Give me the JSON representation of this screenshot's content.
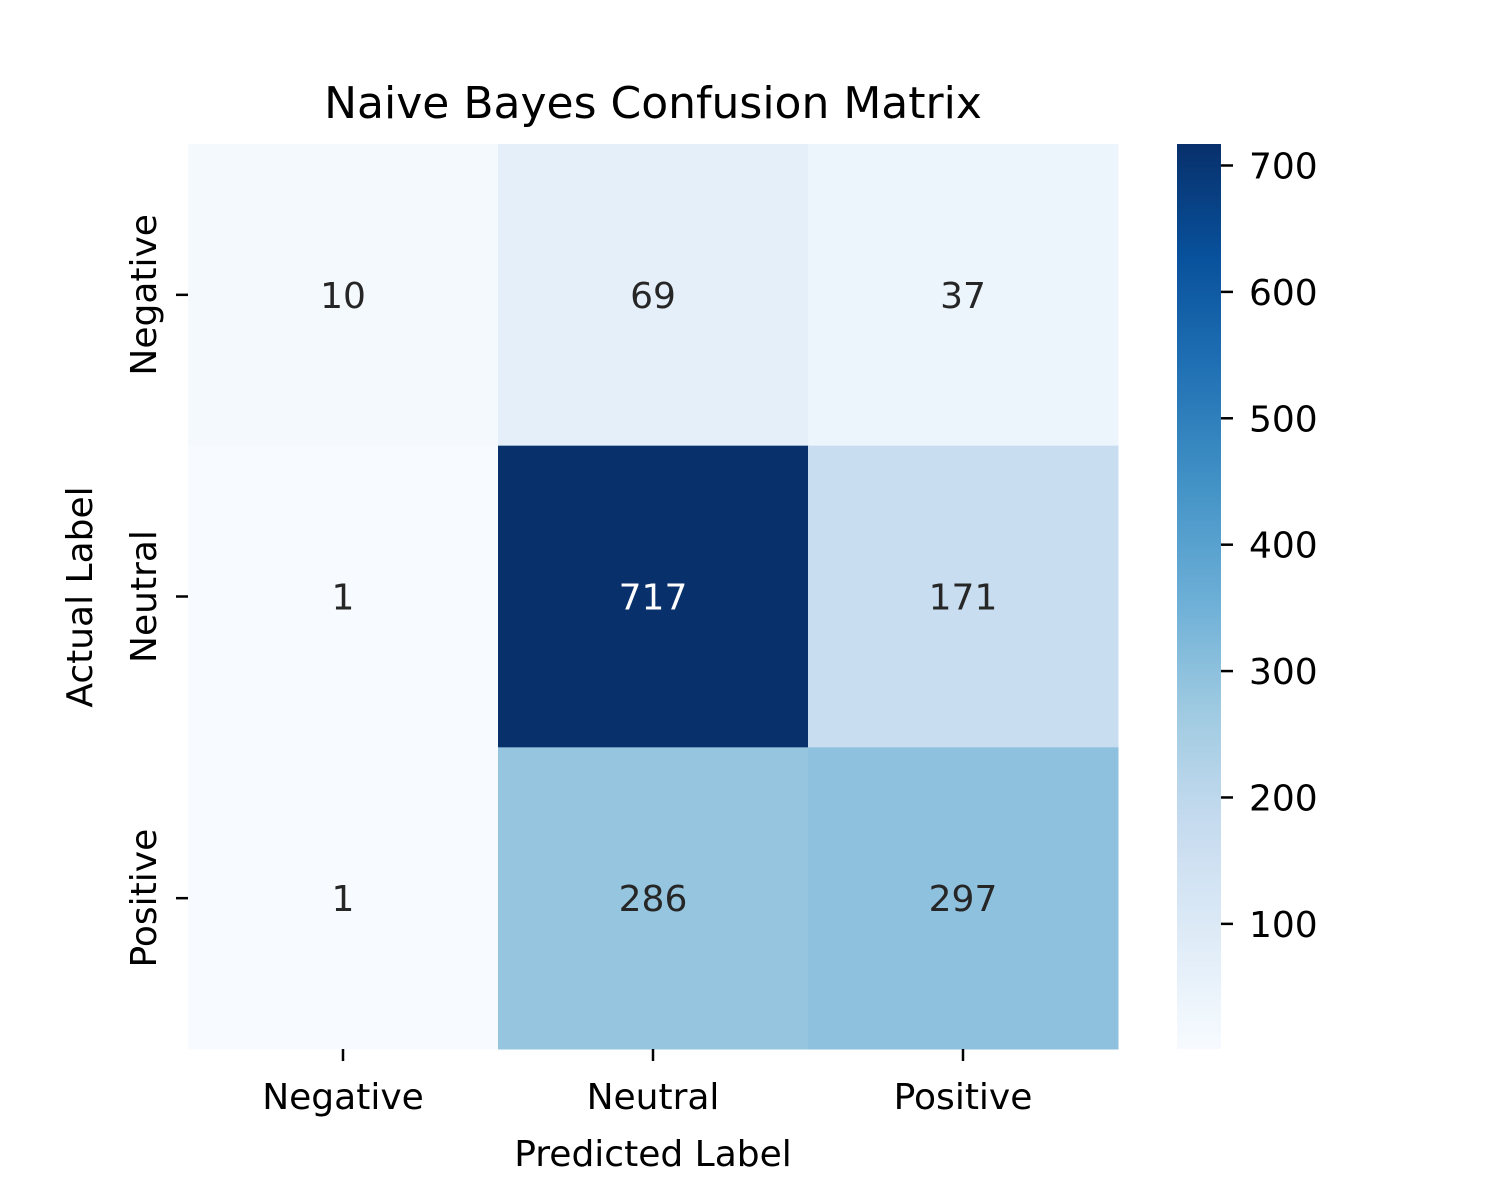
{
  "chart_data": {
    "type": "heatmap",
    "title": "Naive Bayes Confusion Matrix",
    "xlabel": "Predicted Label",
    "ylabel": "Actual Label",
    "x_categories": [
      "Negative",
      "Neutral",
      "Positive"
    ],
    "y_categories": [
      "Negative",
      "Neutral",
      "Positive"
    ],
    "values": [
      [
        10,
        69,
        37
      ],
      [
        1,
        717,
        171
      ],
      [
        1,
        286,
        297
      ]
    ],
    "colormap": "Blues",
    "colorbar": {
      "range": [
        1,
        717
      ],
      "ticks": [
        100,
        200,
        300,
        400,
        500,
        600,
        700
      ],
      "tick_labels": [
        "100",
        "200",
        "300",
        "400",
        "500",
        "600",
        "700"
      ]
    },
    "annotations": true,
    "grid": false
  }
}
